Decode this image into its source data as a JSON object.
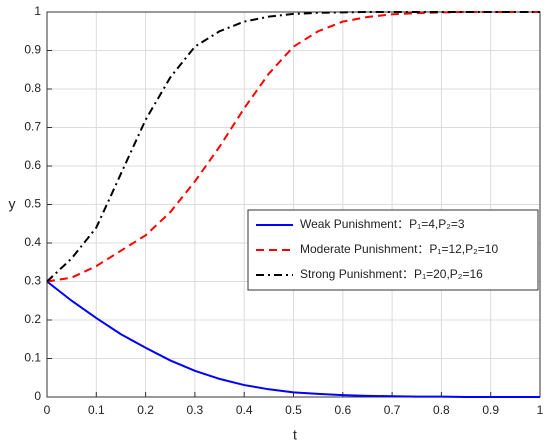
{
  "chart_data": {
    "type": "line",
    "xlabel": "t",
    "ylabel": "y",
    "x": [
      0,
      0.05,
      0.1,
      0.15,
      0.2,
      0.25,
      0.3,
      0.35,
      0.4,
      0.45,
      0.5,
      0.55,
      0.6,
      0.65,
      0.7,
      0.75,
      0.8,
      0.85,
      0.9,
      0.95,
      1
    ],
    "series": [
      {
        "name": "Weak Punishment：P₁=4,P₂=3",
        "color": "#0000ff",
        "style": "solid",
        "values": [
          0.3,
          0.25,
          0.205,
          0.163,
          0.128,
          0.095,
          0.068,
          0.047,
          0.031,
          0.02,
          0.012,
          0.008,
          0.005,
          0.003,
          0.002,
          0.001,
          0.001,
          0,
          0,
          0,
          0
        ]
      },
      {
        "name": "Moderate Punishment：P₁=12,P₂=10",
        "color": "#ff0000",
        "style": "dashed",
        "values": [
          0.3,
          0.31,
          0.34,
          0.38,
          0.42,
          0.48,
          0.56,
          0.65,
          0.75,
          0.84,
          0.91,
          0.95,
          0.975,
          0.987,
          0.994,
          0.997,
          0.999,
          1,
          1,
          1,
          1
        ]
      },
      {
        "name": "Strong Punishment：P₁=20,P₂=16",
        "color": "#000000",
        "style": "dashdot",
        "values": [
          0.3,
          0.36,
          0.44,
          0.58,
          0.72,
          0.83,
          0.91,
          0.95,
          0.975,
          0.988,
          0.995,
          0.998,
          0.999,
          1,
          1,
          1,
          1,
          1,
          1,
          1,
          1
        ]
      }
    ],
    "xlim": [
      0,
      1
    ],
    "ylim": [
      0,
      1
    ],
    "xticks": [
      0,
      0.1,
      0.2,
      0.3,
      0.4,
      0.5,
      0.6,
      0.7,
      0.8,
      0.9,
      1
    ],
    "yticks": [
      0,
      0.1,
      0.2,
      0.3,
      0.4,
      0.5,
      0.6,
      0.7,
      0.8,
      0.9,
      1
    ],
    "grid": true,
    "legend": "right"
  }
}
